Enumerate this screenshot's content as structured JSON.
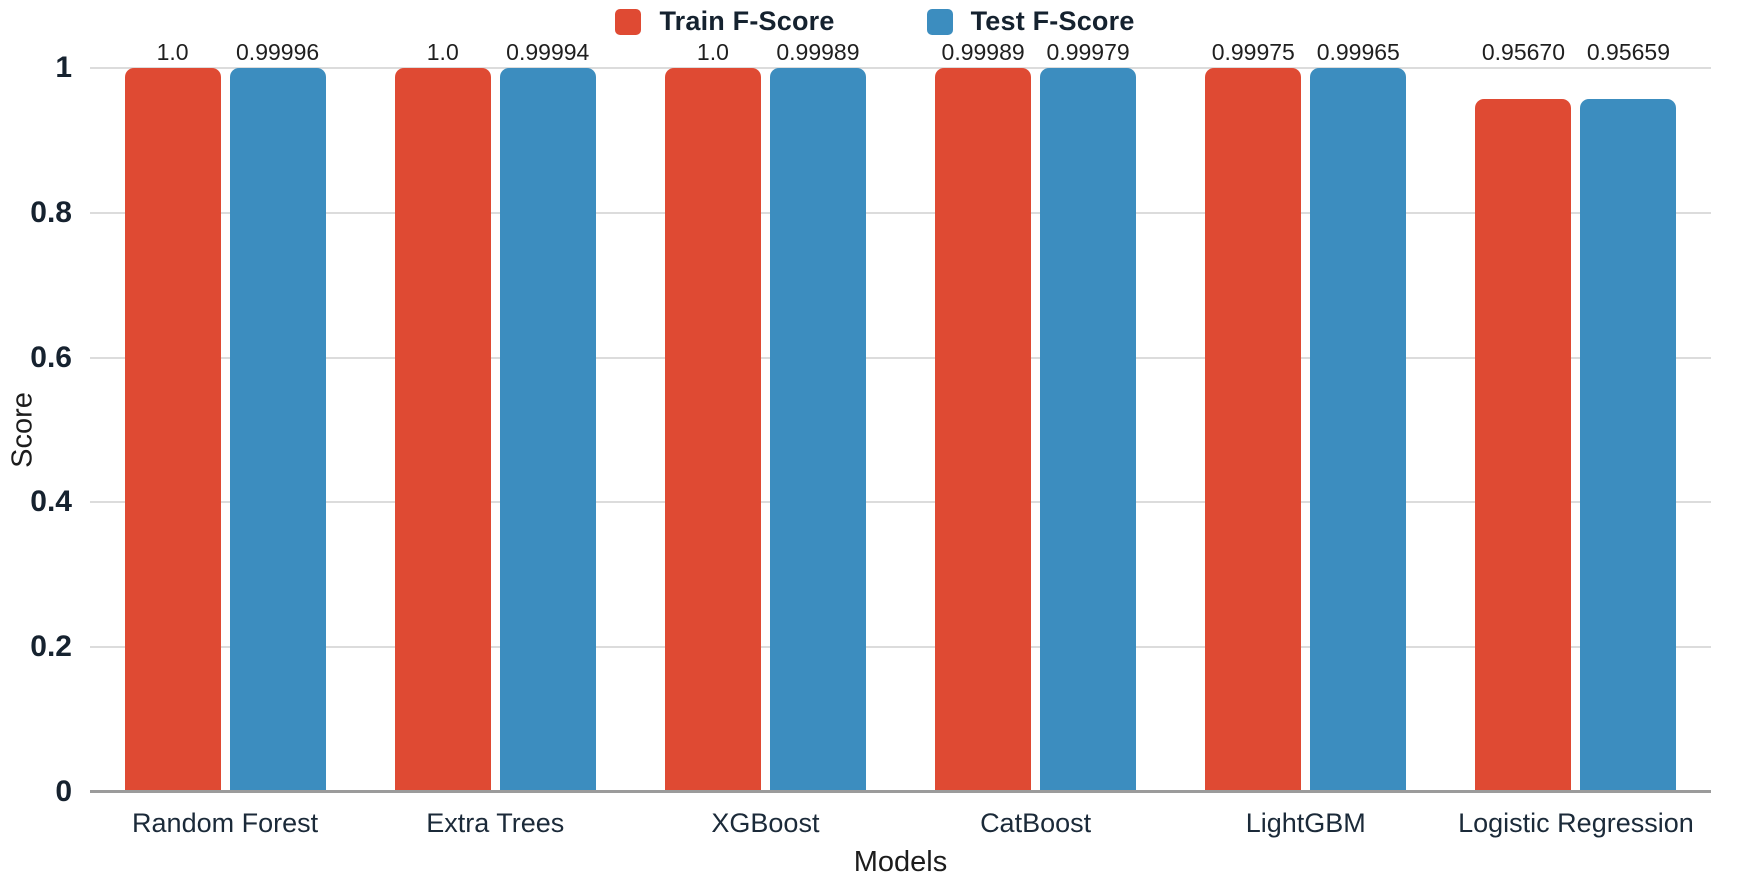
{
  "chart_data": {
    "type": "bar",
    "title": "",
    "xlabel": "Models",
    "ylabel": "Score",
    "categories": [
      "Random Forest",
      "Extra Trees",
      "XGBoost",
      "CatBoost",
      "LightGBM",
      "Logistic Regression"
    ],
    "series": [
      {
        "name": "Train F-Score",
        "key": "train",
        "color": "#DF4A33",
        "values": [
          1.0,
          1.0,
          1.0,
          0.99989,
          0.99975,
          0.9567
        ],
        "labels": [
          "1.0",
          "1.0",
          "1.0",
          "0.99989",
          "0.99975",
          "0.95670"
        ]
      },
      {
        "name": "Test F-Score",
        "key": "test",
        "color": "#3C8DBF",
        "values": [
          0.99996,
          0.99994,
          0.99989,
          0.99979,
          0.99965,
          0.95659
        ],
        "labels": [
          "0.99996",
          "0.99994",
          "0.99989",
          "0.99979",
          "0.99965",
          "0.95659"
        ]
      }
    ],
    "ylim": [
      0,
      1
    ],
    "yticks": [
      "0",
      "0.2",
      "0.4",
      "0.6",
      "0.8",
      "1"
    ],
    "grid": true,
    "legend_position": "top-center",
    "colors": {
      "gridline": "#dcdcdc",
      "axis_line": "#9b9b9b",
      "text_navy": "#1B2A39",
      "text_value": "#1f1f1f"
    }
  }
}
